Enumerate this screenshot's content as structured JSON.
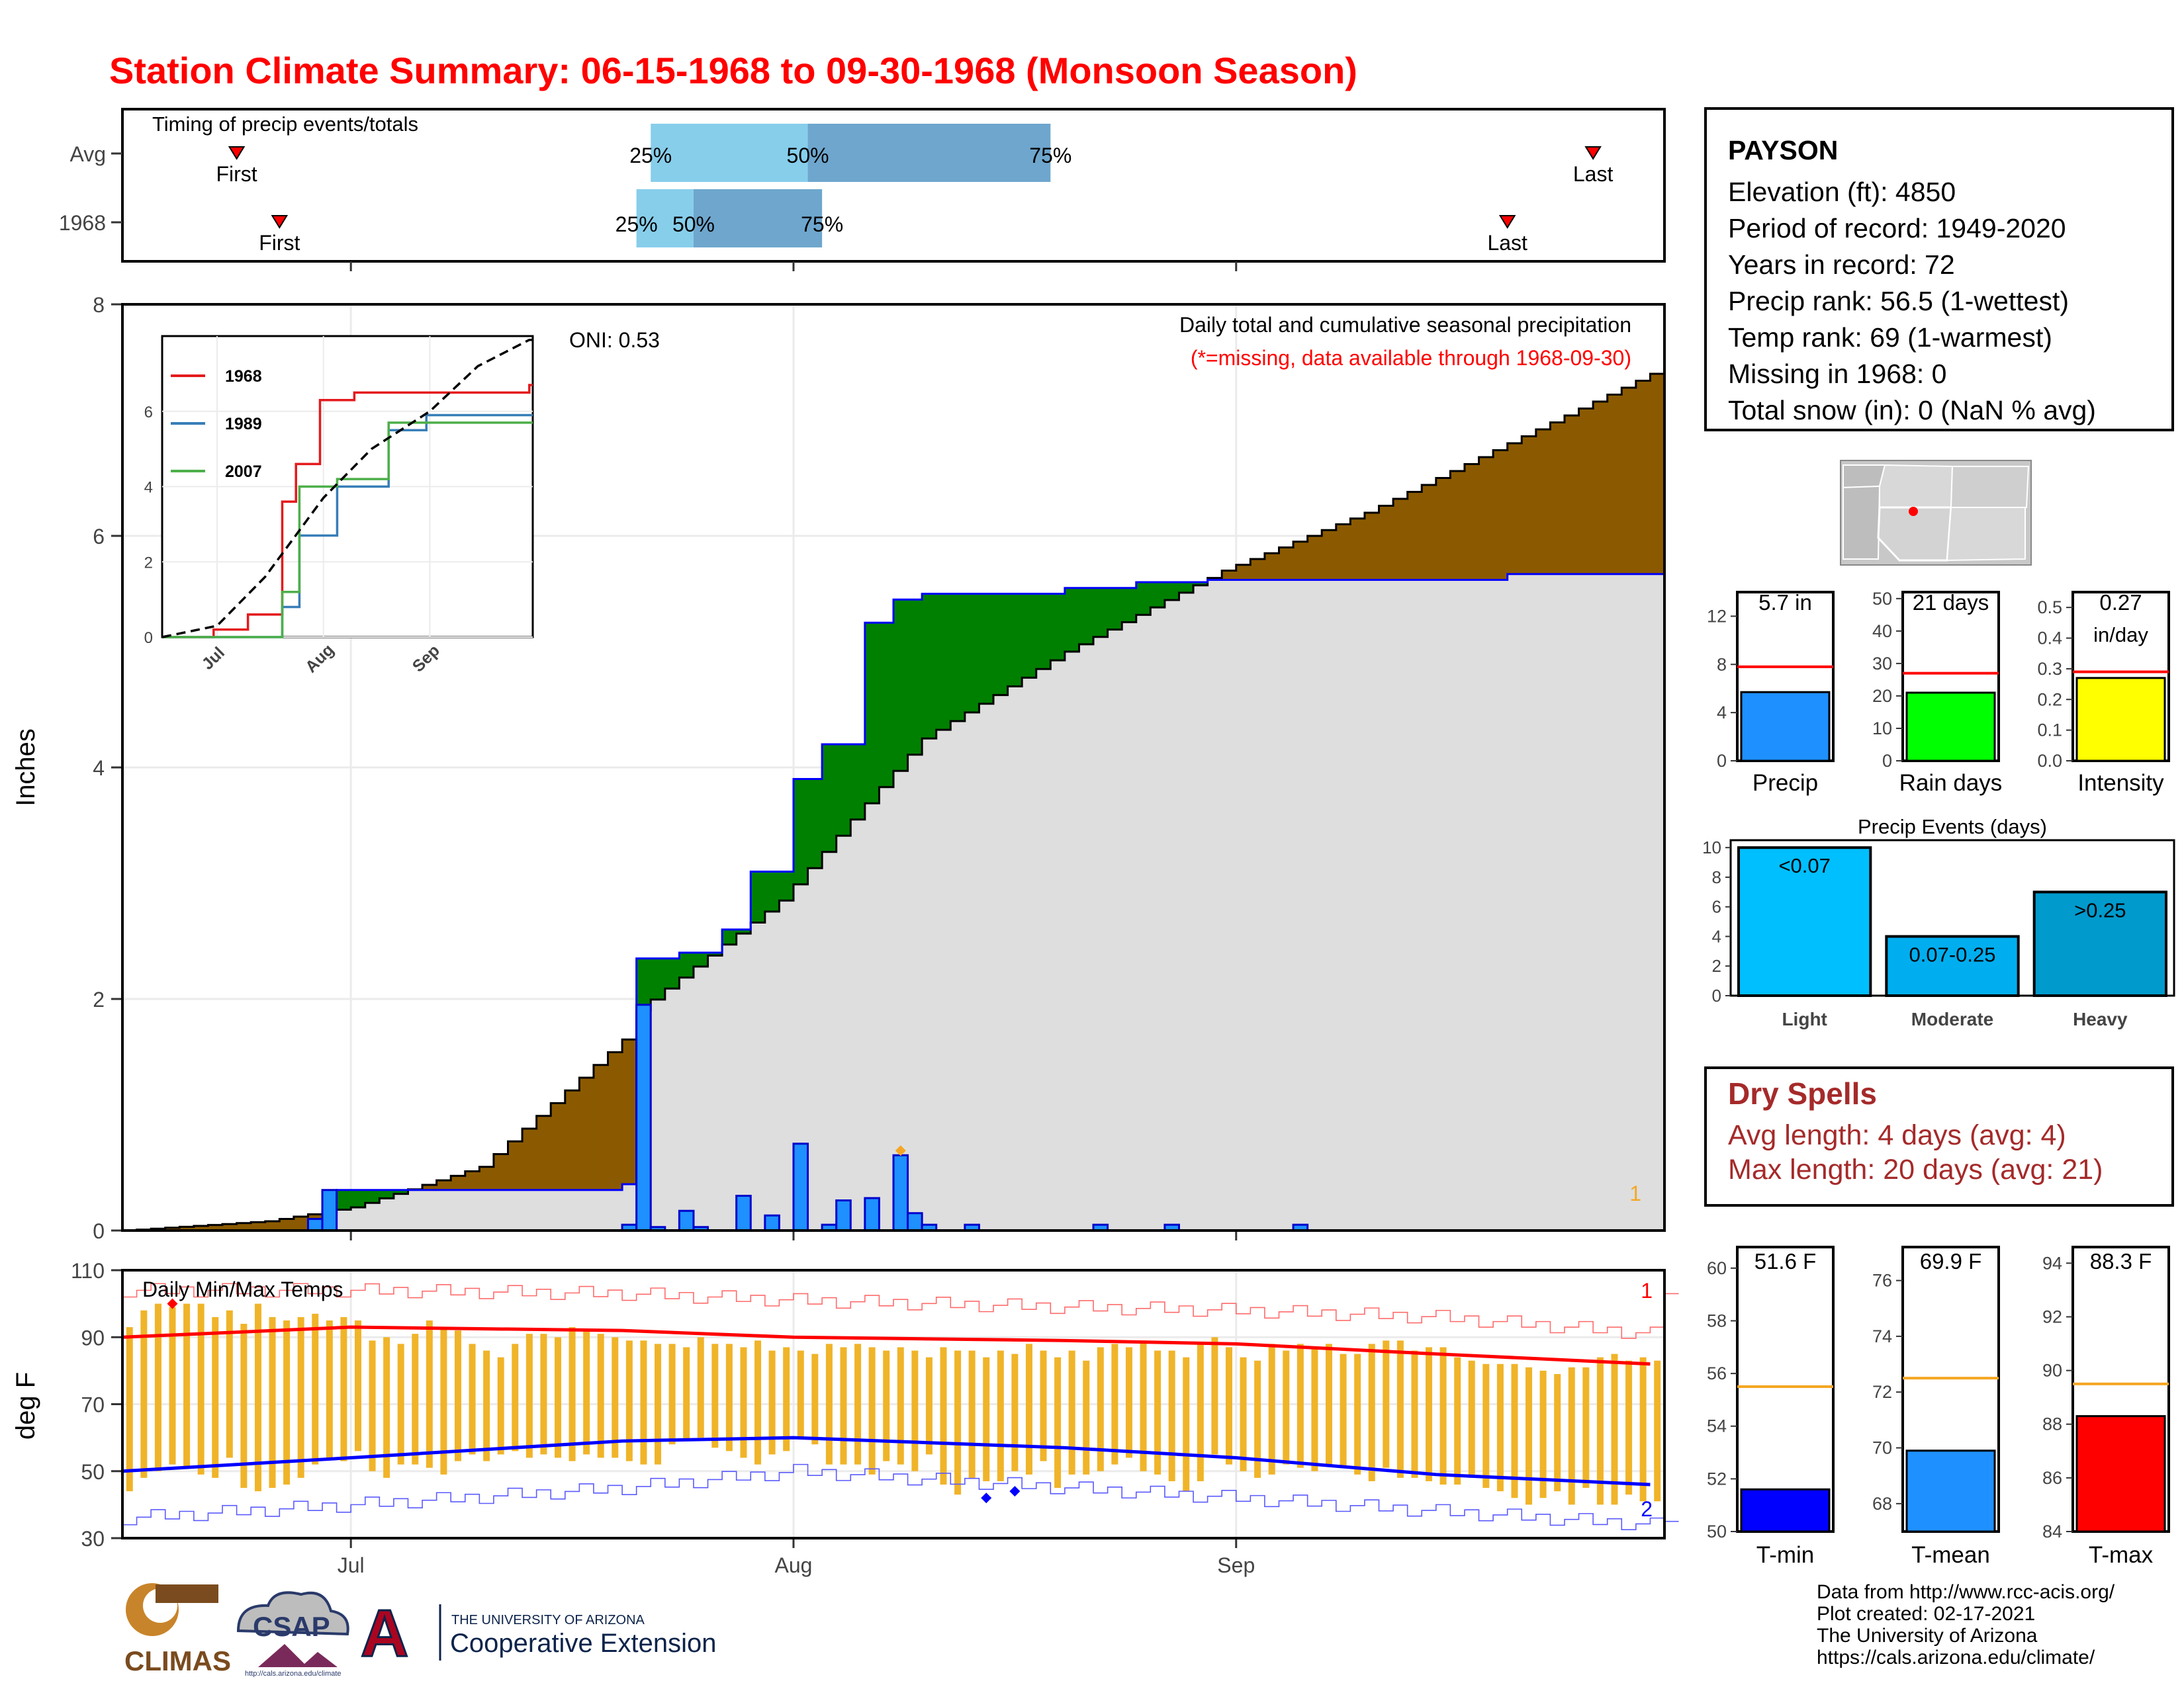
{
  "title": "Station Climate Summary: 06-15-1968 to 09-30-1968 (Monsoon Season)",
  "timing": {
    "label": "Timing of precip events/totals",
    "rows": [
      {
        "name": "Avg",
        "first": "Jun 23",
        "last": "Sep 26",
        "p25": "Jul 22",
        "p50": "Aug 02",
        "p75": "Aug 19"
      },
      {
        "name": "1968",
        "first": "Jun 26",
        "last": "Sep 20",
        "p25": "Jul 21",
        "p50": "Jul 25",
        "p75": "Aug 03"
      }
    ],
    "first_label": "First",
    "last_label": "Last",
    "p25_label": "25%",
    "p50_label": "50%",
    "p75_label": "75%"
  },
  "station": {
    "name": "PAYSON",
    "lines": [
      "Elevation (ft): 4850",
      "Period of record: 1949-2020",
      "Years in record: 72",
      "Precip rank: 56.5 (1-wettest)",
      "Temp rank: 69 (1-warmest)",
      "Missing in 1968: 0",
      "Total snow (in): 0 (NaN % avg)"
    ]
  },
  "dry_spells": {
    "title": "Dry Spells",
    "avg": "Avg length: 4 days (avg: 4)",
    "max": "Max length: 20 days (avg: 21)"
  },
  "credits": [
    "Data from http://www.rcc-acis.org/",
    "Plot created: 02-17-2021",
    "The University of Arizona",
    "https://cals.arizona.edu/climate/"
  ],
  "logos": {
    "climas": "CLIMAS",
    "csap": "CSAP",
    "csap_url": "http://cals.arizona.edu/climate",
    "ua_top": "THE UNIVERSITY OF ARIZONA",
    "ua_bottom": "Cooperative Extension",
    "ua_letter": "A"
  },
  "colors": {
    "red": "#ff0000",
    "blue": "#0000ff",
    "brown": "#8b5a00",
    "green": "#008000",
    "gray": "#dedede",
    "orange": "#f5a623",
    "bar_blue": "#1e90ff"
  },
  "chart_data": [
    {
      "type": "area",
      "title": "Daily total and cumulative seasonal precipitation",
      "subtitle": "(*=missing, data available through 1968-09-30)",
      "annotation": "ONI: 0.53",
      "corner_label": "1",
      "ylabel": "Inches",
      "ylim": [
        0,
        8
      ],
      "yticks": [
        0,
        2,
        4,
        6,
        8
      ],
      "xticks": [
        "Jul",
        "Aug",
        "Sep"
      ],
      "grid": true,
      "series": [
        {
          "name": "Avg cumulative",
          "x": [
            "06-15",
            "06-25",
            "07-01",
            "07-10",
            "07-20",
            "07-21",
            "07-31",
            "08-10",
            "08-20",
            "08-31",
            "09-10",
            "09-20",
            "09-30"
          ],
          "values": [
            0,
            0.08,
            0.2,
            0.55,
            1.65,
            1.9,
            2.85,
            4.25,
            5.0,
            5.7,
            6.2,
            6.8,
            7.4
          ]
        },
        {
          "name": "1968 cumulative",
          "x": [
            "06-15",
            "06-28",
            "06-30",
            "07-20",
            "07-21",
            "07-24",
            "07-27",
            "07-29",
            "08-01",
            "08-03",
            "08-06",
            "08-08",
            "08-10",
            "08-15",
            "08-20",
            "08-25",
            "08-30",
            "09-10",
            "09-20",
            "09-30"
          ],
          "values": [
            0,
            0,
            0.35,
            0.4,
            2.35,
            2.4,
            2.6,
            3.1,
            3.9,
            4.2,
            5.25,
            5.45,
            5.5,
            5.5,
            5.55,
            5.6,
            5.62,
            5.62,
            5.67,
            5.67
          ]
        }
      ],
      "daily_bars": {
        "x": [
          "06-28",
          "06-29",
          "07-20",
          "07-21",
          "07-22",
          "07-24",
          "07-25",
          "07-28",
          "07-30",
          "08-01",
          "08-03",
          "08-04",
          "08-06",
          "08-08",
          "08-09",
          "08-10",
          "08-13",
          "08-22",
          "08-27",
          "09-05"
        ],
        "values": [
          0.1,
          0.35,
          0.05,
          1.95,
          0.03,
          0.17,
          0.03,
          0.3,
          0.13,
          0.75,
          0.05,
          0.26,
          0.28,
          0.65,
          0.15,
          0.05,
          0.05,
          0.05,
          0.05,
          0.05
        ]
      }
    },
    {
      "type": "line",
      "title": "",
      "xticks": [
        "Jul",
        "Aug",
        "Sep"
      ],
      "ylim": [
        0,
        8
      ],
      "yticks": [
        0,
        2,
        4,
        6
      ],
      "series": [
        {
          "name": "1968",
          "x": [
            "06-15",
            "06-30",
            "07-10",
            "07-20",
            "07-24",
            "07-31",
            "08-10",
            "08-20",
            "09-30"
          ],
          "values": [
            0,
            0.2,
            0.6,
            3.6,
            4.6,
            6.3,
            6.5,
            6.5,
            6.7
          ]
        },
        {
          "name": "1989",
          "x": [
            "06-15",
            "07-10",
            "07-20",
            "07-25",
            "08-05",
            "08-20",
            "08-31",
            "09-30"
          ],
          "values": [
            0,
            0,
            0.8,
            2.7,
            4.0,
            5.5,
            5.9,
            5.9
          ]
        },
        {
          "name": "2007",
          "x": [
            "06-15",
            "07-05",
            "07-20",
            "07-25",
            "08-05",
            "08-20",
            "09-30"
          ],
          "values": [
            0,
            0,
            1.2,
            4.0,
            4.2,
            5.7,
            5.7
          ]
        },
        {
          "name": "Average",
          "x": [
            "06-15",
            "07-01",
            "07-15",
            "08-01",
            "08-15",
            "09-01",
            "09-15",
            "09-30"
          ],
          "values": [
            0,
            0.3,
            1.6,
            3.7,
            5.0,
            6.0,
            7.2,
            7.9
          ]
        }
      ]
    },
    {
      "type": "line",
      "title": "Daily Min/Max Temps",
      "ylabel": "deg F",
      "ylim": [
        30,
        110
      ],
      "yticks": [
        30,
        50,
        70,
        90,
        110
      ],
      "xticks": [
        "Jul",
        "Aug",
        "Sep"
      ],
      "corner_top": "1",
      "corner_bottom": "2",
      "series": [
        {
          "name": "Avg max",
          "x": [
            "06-15",
            "07-01",
            "07-20",
            "08-01",
            "08-20",
            "09-01",
            "09-15",
            "09-30"
          ],
          "values": [
            90,
            93,
            92,
            90,
            89,
            88,
            85,
            82
          ]
        },
        {
          "name": "Avg min",
          "x": [
            "06-15",
            "07-01",
            "07-20",
            "08-01",
            "08-20",
            "09-01",
            "09-15",
            "09-30"
          ],
          "values": [
            50,
            54,
            59,
            60,
            57,
            54,
            49,
            46
          ]
        },
        {
          "name": "Record max",
          "x": [
            "06-15",
            "07-01",
            "07-20",
            "08-01",
            "08-20",
            "09-01",
            "09-15",
            "09-30"
          ],
          "values": [
            104,
            104,
            103,
            101,
            99,
            98,
            96,
            91
          ]
        },
        {
          "name": "Record min",
          "x": [
            "06-15",
            "07-01",
            "07-20",
            "08-01",
            "08-20",
            "09-01",
            "09-15",
            "09-30"
          ],
          "values": [
            36,
            40,
            45,
            50,
            45,
            42,
            38,
            34
          ]
        }
      ],
      "daily_range": {
        "x_start": "06-15",
        "days": 108,
        "max": [
          93,
          98,
          100,
          99,
          100,
          100,
          96,
          98,
          94,
          100,
          96,
          95,
          96,
          97,
          95,
          96,
          95,
          89,
          90,
          88,
          91,
          95,
          93,
          92,
          88,
          86,
          84,
          88,
          91,
          91,
          90,
          93,
          92,
          91,
          90,
          89,
          89,
          88,
          88,
          87,
          90,
          88,
          88,
          87,
          89,
          86,
          87,
          86,
          85,
          88,
          87,
          88,
          87,
          86,
          87,
          86,
          84,
          87,
          86,
          86,
          84,
          86,
          85,
          88,
          86,
          84,
          86,
          83,
          87,
          88,
          87,
          89,
          86,
          86,
          84,
          88,
          90,
          87,
          84,
          83,
          88,
          86,
          88,
          87,
          88,
          85,
          85,
          88,
          89,
          89,
          86,
          87,
          87,
          84,
          83,
          82,
          82,
          82,
          81,
          80,
          79,
          81,
          81,
          84,
          85,
          83,
          84,
          83
        ],
        "min": [
          44,
          48,
          50,
          52,
          51,
          49,
          48,
          54,
          45,
          44,
          45,
          46,
          48,
          52,
          54,
          53,
          56,
          50,
          48,
          52,
          52,
          51,
          49,
          53,
          55,
          53,
          55,
          56,
          54,
          55,
          54,
          53,
          55,
          54,
          54,
          53,
          52,
          52,
          58,
          59,
          60,
          57,
          56,
          54,
          52,
          55,
          56,
          60,
          58,
          52,
          52,
          52,
          49,
          53,
          52,
          50,
          55,
          46,
          43,
          48,
          47,
          47,
          50,
          49,
          53,
          45,
          49,
          49,
          50,
          52,
          54,
          50,
          49,
          47,
          44,
          47,
          55,
          52,
          50,
          48,
          49,
          52,
          51,
          50,
          52,
          51,
          49,
          47,
          51,
          48,
          48,
          47,
          46,
          46,
          48,
          45,
          44,
          42,
          40,
          42,
          44,
          40,
          45,
          40,
          40,
          43,
          41,
          41
        ]
      },
      "points": [
        {
          "label": "record max",
          "x": "06-18",
          "y": 100
        },
        {
          "label": "record min",
          "x": "08-14",
          "y": 42
        },
        {
          "label": "record min",
          "x": "08-16",
          "y": 44
        }
      ]
    },
    {
      "type": "bar",
      "title": "Precip",
      "value_label": "5.7 in",
      "values": [
        5.7
      ],
      "avg": 7.8,
      "ylim": [
        0,
        14
      ],
      "yticks": [
        0,
        4,
        8,
        12
      ],
      "color": "#1e90ff"
    },
    {
      "type": "bar",
      "title": "Rain days",
      "value_label": "21 days",
      "values": [
        21
      ],
      "avg": 27,
      "ylim": [
        0,
        52
      ],
      "yticks": [
        0,
        10,
        20,
        30,
        40,
        50
      ],
      "color": "#00ff00"
    },
    {
      "type": "bar",
      "title": "Intensity",
      "value_label": "0.27",
      "value_unit": "in/day",
      "values": [
        0.27
      ],
      "avg": 0.29,
      "ylim": [
        0,
        0.55
      ],
      "yticks": [
        "0.0",
        "0.1",
        "0.2",
        "0.3",
        "0.4",
        "0.5"
      ],
      "color": "#ffff00"
    },
    {
      "type": "bar",
      "title": "Precip Events (days)",
      "categories": [
        "Light",
        "Moderate",
        "Heavy"
      ],
      "bar_labels": [
        "<0.07",
        "0.07-0.25",
        ">0.25"
      ],
      "values": [
        10,
        4,
        7
      ],
      "ylim": [
        0,
        10.5
      ],
      "yticks": [
        0,
        2,
        4,
        6,
        8,
        10
      ],
      "colors": [
        "#00bfff",
        "#00aeef",
        "#009acd"
      ]
    },
    {
      "type": "bar",
      "title": "T-min",
      "value_label": "51.6 F",
      "values": [
        51.6
      ],
      "avg": 55.5,
      "ylim": [
        50,
        60.8
      ],
      "yticks": [
        50,
        52,
        54,
        56,
        58,
        60
      ],
      "color": "#0000ff"
    },
    {
      "type": "bar",
      "title": "T-mean",
      "value_label": "69.9 F",
      "values": [
        69.9
      ],
      "avg": 72.5,
      "ylim": [
        67,
        77.2
      ],
      "yticks": [
        68,
        70,
        72,
        74,
        76
      ],
      "color": "#1e90ff"
    },
    {
      "type": "bar",
      "title": "T-max",
      "value_label": "88.3 F",
      "values": [
        88.3
      ],
      "avg": 89.5,
      "ylim": [
        84,
        94.6
      ],
      "yticks": [
        84,
        86,
        88,
        90,
        92,
        94
      ],
      "color": "#ff0000"
    }
  ]
}
